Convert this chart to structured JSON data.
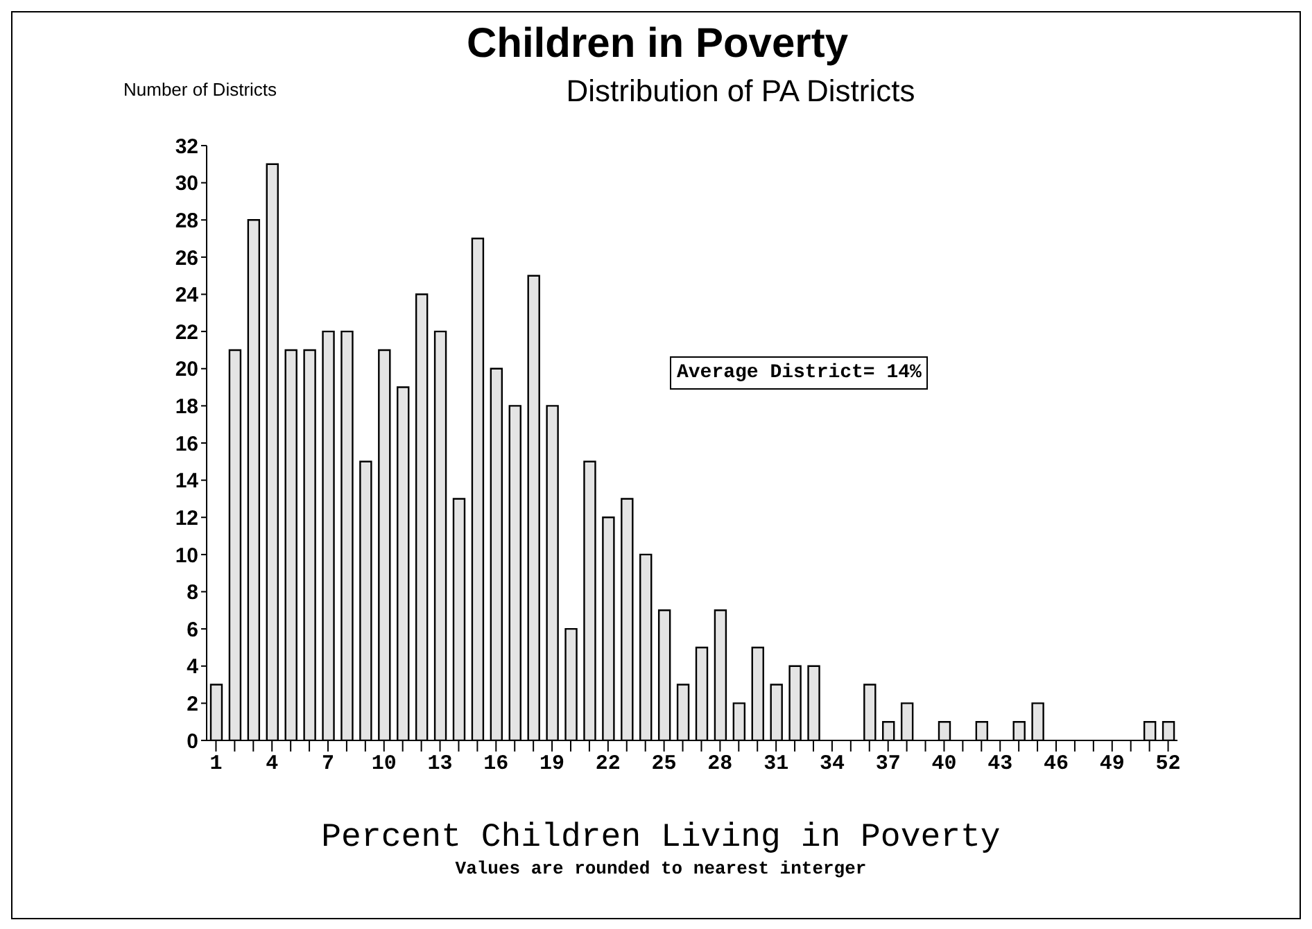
{
  "chart_data": {
    "type": "bar",
    "title": "Children in Poverty",
    "subtitle": "Distribution of PA Districts",
    "xlabel": "Percent Children Living in Poverty",
    "ylabel": "Number of Districts",
    "annotations": [
      "Average District= 14%",
      "Values are rounded to nearest interger"
    ],
    "categories": [
      "1",
      null,
      null,
      "4",
      null,
      null,
      "7",
      null,
      null,
      "10",
      null,
      null,
      "13",
      null,
      null,
      "16",
      null,
      null,
      "19",
      null,
      null,
      "22",
      null,
      null,
      "25",
      null,
      null,
      "28",
      null,
      null,
      "31",
      null,
      null,
      "34",
      null,
      null,
      "37",
      null,
      null,
      "40",
      null,
      null,
      "43",
      null,
      null,
      "46",
      null,
      null,
      "49",
      null,
      null,
      "52"
    ],
    "values": [
      3,
      21,
      28,
      31,
      21,
      21,
      22,
      22,
      15,
      21,
      19,
      24,
      22,
      13,
      27,
      20,
      18,
      25,
      18,
      6,
      15,
      12,
      13,
      10,
      7,
      3,
      5,
      7,
      2,
      5,
      3,
      4,
      4,
      0,
      0,
      3,
      1,
      2,
      0,
      1,
      0,
      1,
      0,
      1,
      2,
      0,
      0,
      0,
      0,
      0,
      1,
      1
    ],
    "color": "#e4e4e4",
    "ylim": [
      0,
      32
    ],
    "yticks": [
      0,
      2,
      4,
      6,
      8,
      10,
      12,
      14,
      16,
      18,
      20,
      22,
      24,
      26,
      28,
      30,
      32
    ],
    "grid": false,
    "legend": false
  }
}
